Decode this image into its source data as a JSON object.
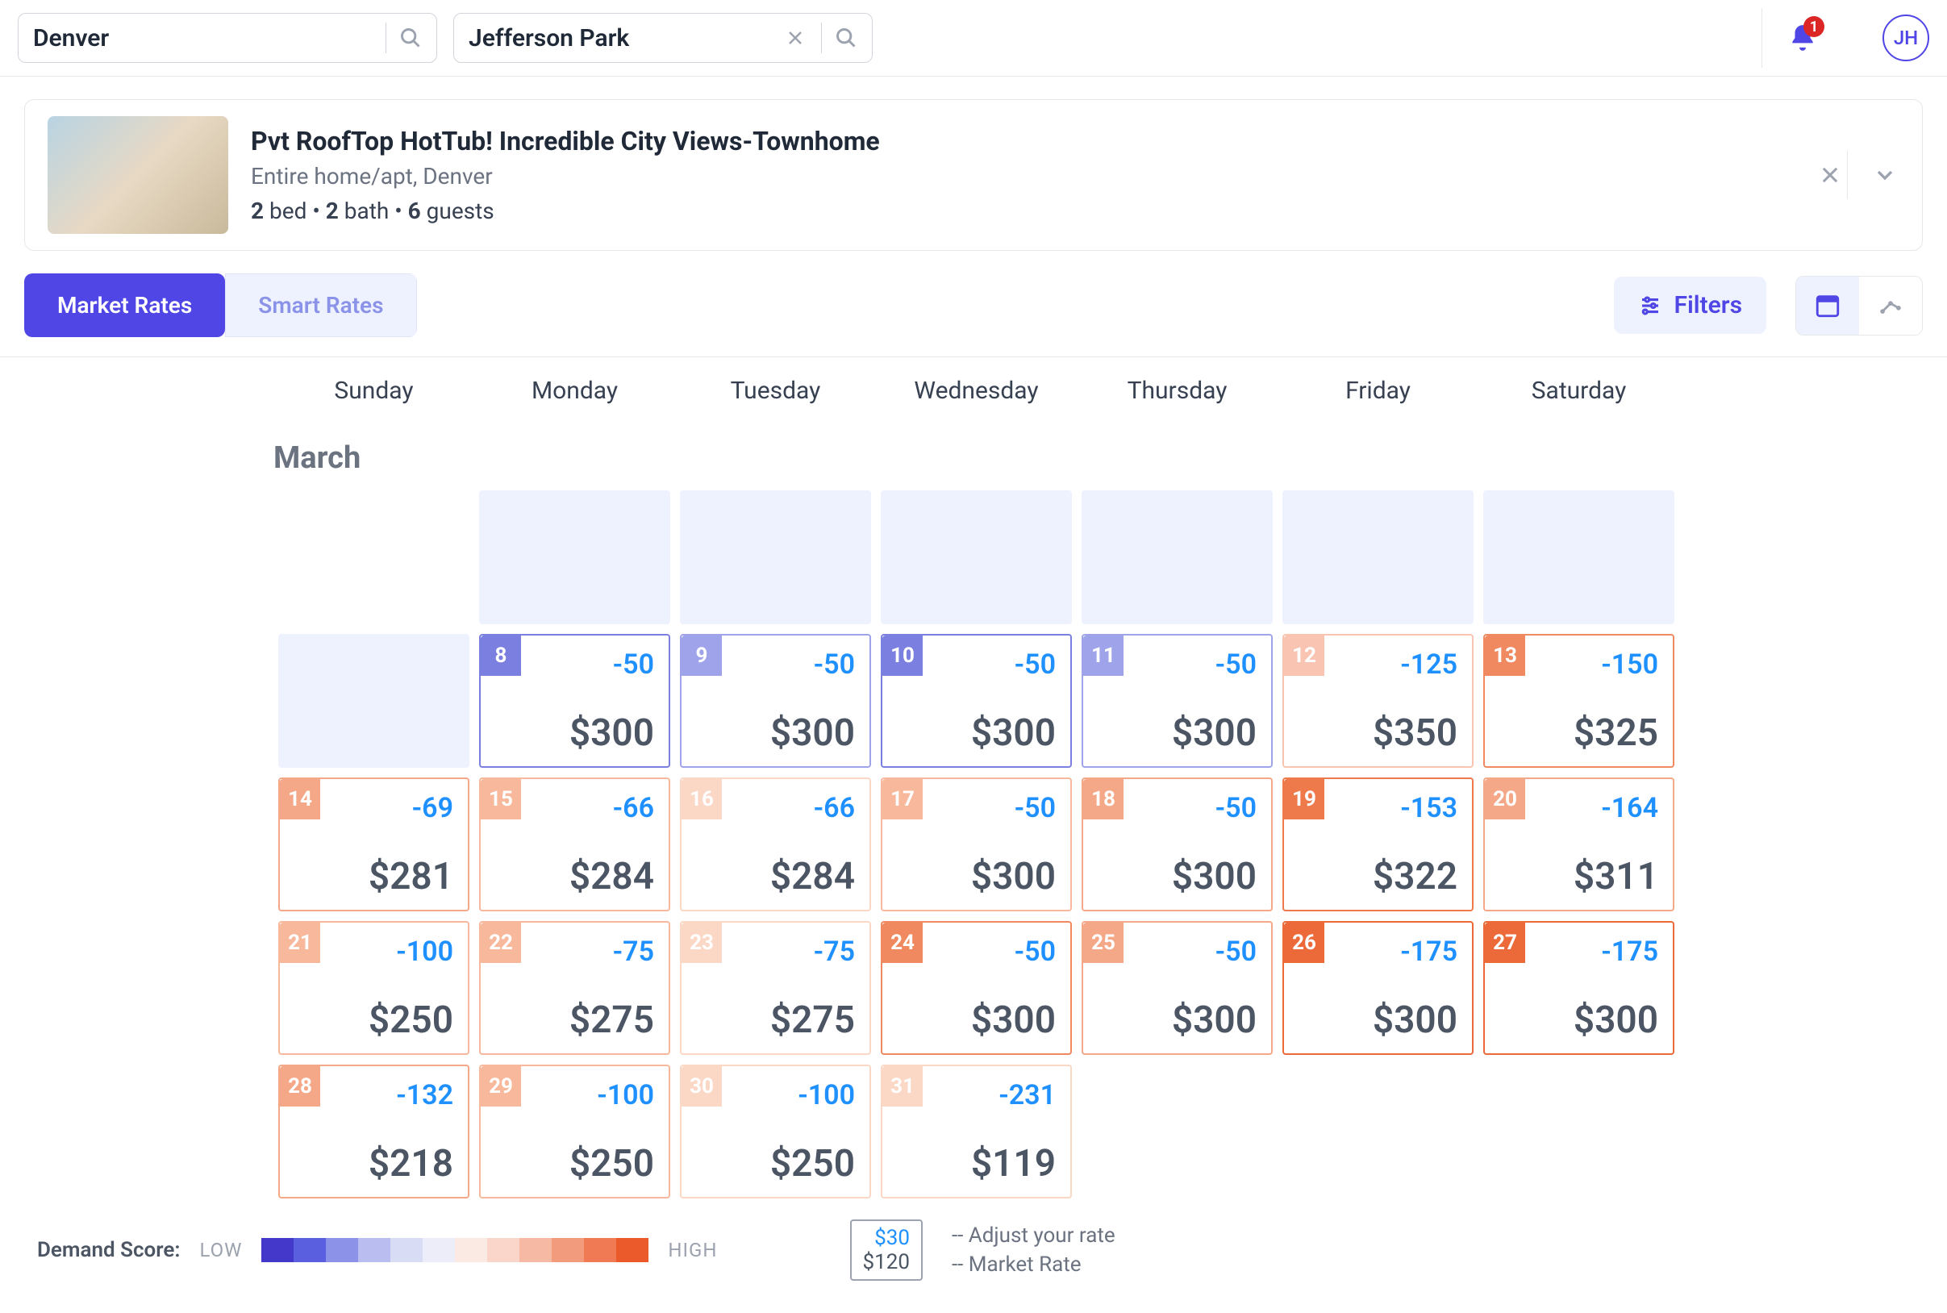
{
  "search": {
    "city": "Denver",
    "neighborhood": "Jefferson Park"
  },
  "notifications": {
    "count": "1"
  },
  "user": {
    "initials": "JH"
  },
  "listing": {
    "title": "Pvt RoofTop HotTub! Incredible City Views-Townhome",
    "subtitle": "Entire home/apt, Denver",
    "beds": "2",
    "baths": "2",
    "guests": "6",
    "bed_label": " bed • ",
    "bath_label": " bath • ",
    "guests_label": " guests"
  },
  "tabs": {
    "market_rates": "Market Rates",
    "smart_rates": "Smart Rates"
  },
  "filters_label": "Filters",
  "days": [
    "Sunday",
    "Monday",
    "Tuesday",
    "Wednesday",
    "Thursday",
    "Friday",
    "Saturday"
  ],
  "month": "March",
  "demand_colors": [
    "#4338ca",
    "#5a5fe0",
    "#8c92e8",
    "#b9bdf0",
    "#d9dcf5",
    "#ecedf9",
    "#fbeae4",
    "#f9d6c9",
    "#f6b9a3",
    "#f39b7d",
    "#ef7a53",
    "#ea5a2b"
  ],
  "cells": [
    {
      "day": "8",
      "adjust": "-50",
      "rate": "$300",
      "demand": "#7a7fe0",
      "border": "#7a7fe0"
    },
    {
      "day": "9",
      "adjust": "-50",
      "rate": "$300",
      "demand": "#9fa4ea",
      "border": "#9fa4ea"
    },
    {
      "day": "10",
      "adjust": "-50",
      "rate": "$300",
      "demand": "#7a7fe0",
      "border": "#7a7fe0"
    },
    {
      "day": "11",
      "adjust": "-50",
      "rate": "$300",
      "demand": "#9fa4ea",
      "border": "#9fa4ea"
    },
    {
      "day": "12",
      "adjust": "-125",
      "rate": "$350",
      "demand": "#f9c4b1",
      "border": "#f9c4b1"
    },
    {
      "day": "13",
      "adjust": "-150",
      "rate": "$325",
      "demand": "#f0895f",
      "border": "#f0895f"
    },
    {
      "day": "14",
      "adjust": "-69",
      "rate": "$281",
      "demand": "#f5a887",
      "border": "#f5a887"
    },
    {
      "day": "15",
      "adjust": "-66",
      "rate": "$284",
      "demand": "#f7b89c",
      "border": "#f7b89c"
    },
    {
      "day": "16",
      "adjust": "-66",
      "rate": "$284",
      "demand": "#fbd7c6",
      "border": "#fbd7c6"
    },
    {
      "day": "17",
      "adjust": "-50",
      "rate": "$300",
      "demand": "#f7b89c",
      "border": "#f7b89c"
    },
    {
      "day": "18",
      "adjust": "-50",
      "rate": "$300",
      "demand": "#f5a887",
      "border": "#f5a887"
    },
    {
      "day": "19",
      "adjust": "-153",
      "rate": "$322",
      "demand": "#ee7a4c",
      "border": "#ee7a4c"
    },
    {
      "day": "20",
      "adjust": "-164",
      "rate": "$311",
      "demand": "#f5a887",
      "border": "#f5a887"
    },
    {
      "day": "21",
      "adjust": "-100",
      "rate": "$250",
      "demand": "#f7b89c",
      "border": "#f7b89c"
    },
    {
      "day": "22",
      "adjust": "-75",
      "rate": "$275",
      "demand": "#f7b89c",
      "border": "#f7b89c"
    },
    {
      "day": "23",
      "adjust": "-75",
      "rate": "$275",
      "demand": "#fbd7c6",
      "border": "#fbd7c6"
    },
    {
      "day": "24",
      "adjust": "-50",
      "rate": "$300",
      "demand": "#f0895f",
      "border": "#f0895f"
    },
    {
      "day": "25",
      "adjust": "-50",
      "rate": "$300",
      "demand": "#f5a887",
      "border": "#f5a887"
    },
    {
      "day": "26",
      "adjust": "-175",
      "rate": "$300",
      "demand": "#ec6a3a",
      "border": "#ec6a3a"
    },
    {
      "day": "27",
      "adjust": "-175",
      "rate": "$300",
      "demand": "#ec6a3a",
      "border": "#ec6a3a"
    },
    {
      "day": "28",
      "adjust": "-132",
      "rate": "$218",
      "demand": "#f5a887",
      "border": "#f5a887"
    },
    {
      "day": "29",
      "adjust": "-100",
      "rate": "$250",
      "demand": "#f7b89c",
      "border": "#f7b89c"
    },
    {
      "day": "30",
      "adjust": "-100",
      "rate": "$250",
      "demand": "#fbd7c6",
      "border": "#fbd7c6"
    },
    {
      "day": "31",
      "adjust": "-231",
      "rate": "$119",
      "demand": "#fbd7c6",
      "border": "#fbd7c6"
    }
  ],
  "legend": {
    "demand_label": "Demand Score:",
    "low": "LOW",
    "high": "HIGH",
    "adjust_example": "$30",
    "rate_example": "$120",
    "adjust_text": "-- Adjust your rate",
    "rate_text": "-- Market Rate"
  }
}
